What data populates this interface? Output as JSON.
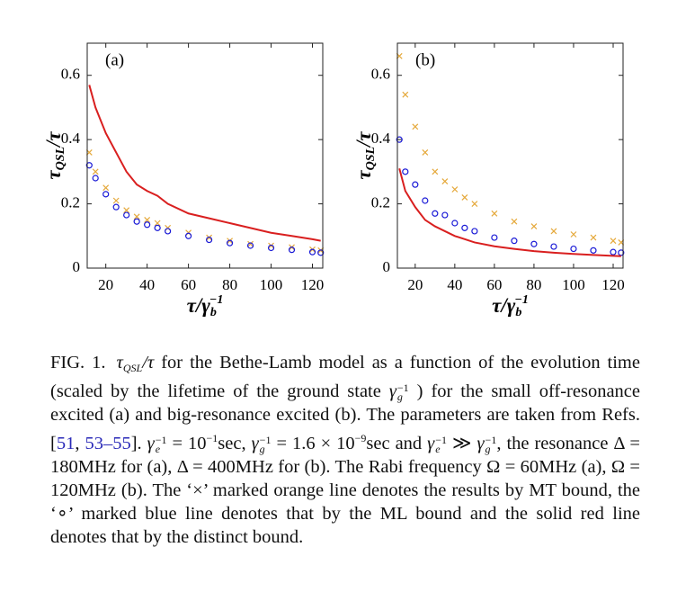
{
  "chart_data": [
    {
      "type": "line",
      "panel_label": "(a)",
      "ylabel": [
        "τ",
        "QSL",
        "/τ"
      ],
      "xlabel": [
        "τ/γ",
        "b",
        "−1"
      ],
      "x": [
        12,
        15,
        20,
        25,
        30,
        35,
        40,
        45,
        50,
        60,
        70,
        80,
        90,
        100,
        110,
        120,
        124
      ],
      "xlim": [
        11,
        125
      ],
      "xticks": [
        20,
        40,
        60,
        80,
        100,
        120
      ],
      "ylim": [
        0,
        0.7
      ],
      "yticks": [
        0,
        0.2,
        0.4,
        0.6
      ],
      "series": [
        {
          "color": "#e5a93b",
          "marker": "cross",
          "values": [
            0.36,
            0.3,
            0.25,
            0.21,
            0.18,
            0.16,
            0.15,
            0.14,
            0.125,
            0.11,
            0.095,
            0.085,
            0.075,
            0.07,
            0.065,
            0.058,
            0.055
          ]
        },
        {
          "color": "#1a1ad6",
          "marker": "circle",
          "values": [
            0.32,
            0.28,
            0.23,
            0.19,
            0.165,
            0.145,
            0.135,
            0.125,
            0.115,
            0.1,
            0.088,
            0.078,
            0.07,
            0.063,
            0.057,
            0.05,
            0.048
          ]
        },
        {
          "color": "#d91f1f",
          "marker": "line",
          "values": [
            0.57,
            0.5,
            0.42,
            0.36,
            0.3,
            0.26,
            0.24,
            0.225,
            0.2,
            0.17,
            0.155,
            0.14,
            0.125,
            0.11,
            0.1,
            0.09,
            0.085
          ]
        }
      ]
    },
    {
      "type": "line",
      "panel_label": "(b)",
      "ylabel": [
        "τ",
        "QSL",
        "/τ"
      ],
      "xlabel": [
        "τ/γ",
        "b",
        "−1"
      ],
      "x": [
        12,
        15,
        20,
        25,
        30,
        35,
        40,
        45,
        50,
        60,
        70,
        80,
        90,
        100,
        110,
        120,
        124
      ],
      "xlim": [
        11,
        125
      ],
      "xticks": [
        20,
        40,
        60,
        80,
        100,
        120
      ],
      "ylim": [
        0,
        0.7
      ],
      "yticks": [
        0,
        0.2,
        0.4,
        0.6
      ],
      "series": [
        {
          "color": "#e5a93b",
          "marker": "cross",
          "values": [
            0.66,
            0.54,
            0.44,
            0.36,
            0.3,
            0.27,
            0.245,
            0.22,
            0.2,
            0.17,
            0.145,
            0.13,
            0.115,
            0.105,
            0.095,
            0.085,
            0.08
          ]
        },
        {
          "color": "#1a1ad6",
          "marker": "circle",
          "values": [
            0.4,
            0.3,
            0.26,
            0.21,
            0.17,
            0.165,
            0.14,
            0.125,
            0.115,
            0.095,
            0.085,
            0.075,
            0.067,
            0.06,
            0.055,
            0.05,
            0.048
          ]
        },
        {
          "color": "#d91f1f",
          "marker": "line",
          "values": [
            0.31,
            0.24,
            0.19,
            0.15,
            0.13,
            0.115,
            0.1,
            0.09,
            0.08,
            0.068,
            0.06,
            0.053,
            0.048,
            0.044,
            0.041,
            0.038,
            0.037
          ]
        }
      ]
    }
  ],
  "caption": {
    "parts": [
      "FIG. 1.",
      "τ",
      "QSL",
      "/τ",
      " for the Bethe-Lamb model as a function of the evolution time (scaled by the lifetime of the ground state ",
      "γ",
      "g",
      "−1",
      " ) for the small off-resonance excited (a) and big-resonance excited (b). The parameters are taken from Refs. [",
      "51",
      ", ",
      "53–55",
      "]. ",
      "γ",
      "e",
      "−1",
      " = 10",
      "−1",
      "sec, ",
      "γ",
      "g",
      "−1",
      " = 1.6 × 10",
      "−9",
      "sec and ",
      "γ",
      "e",
      "−1",
      " ≫ ",
      "γ",
      "g",
      "−1",
      ", the resonance Δ = 180MHz for (a), Δ = 400MHz for (b). The Rabi frequency Ω = 60MHz (a), Ω = 120MHz (b). The ‘×’ marked orange line denotes the results by MT bound, the ‘∘’ marked blue line denotes that by the ML bound and the solid red line denotes that by the distinct bound."
    ]
  }
}
